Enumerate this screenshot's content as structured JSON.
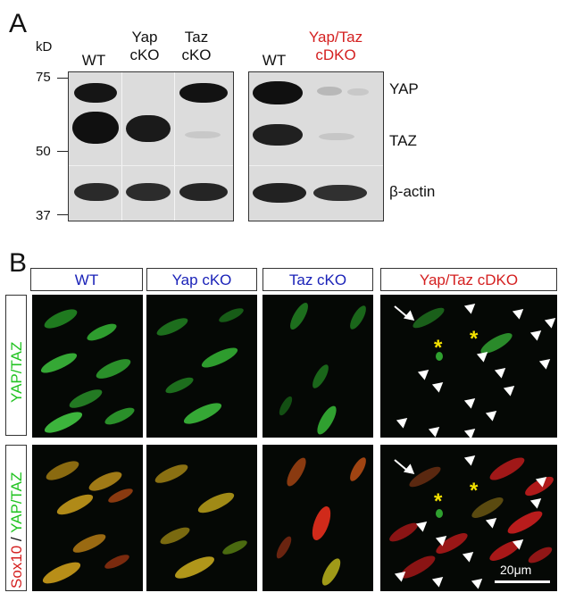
{
  "panelA": {
    "letter": "A",
    "kd_label": "kD",
    "mw_markers": [
      "75",
      "50",
      "37"
    ],
    "lanes_left": [
      {
        "line1": "WT",
        "line2": ""
      },
      {
        "line1": "Yap",
        "line2": "cKO"
      },
      {
        "line1": "Taz",
        "line2": "cKO"
      }
    ],
    "lanes_right": [
      {
        "line1": "WT",
        "line2": ""
      },
      {
        "line1": "Yap/Taz",
        "line2": "cDKO"
      }
    ],
    "bands": [
      "YAP",
      "TAZ",
      "β-actin"
    ]
  },
  "panelB": {
    "letter": "B",
    "columns": [
      "WT",
      "Yap cKO",
      "Taz cKO",
      "Yap/Taz cDKO"
    ],
    "row1_label": "YAP/TAZ",
    "row2_label_red": "Sox10",
    "row2_label_sep": " / ",
    "row2_label_green": "YAP/TAZ",
    "scale_bar": "20μm",
    "colors": {
      "red": "#d42020",
      "blue": "#1a22b8",
      "green": "#22c322"
    }
  }
}
